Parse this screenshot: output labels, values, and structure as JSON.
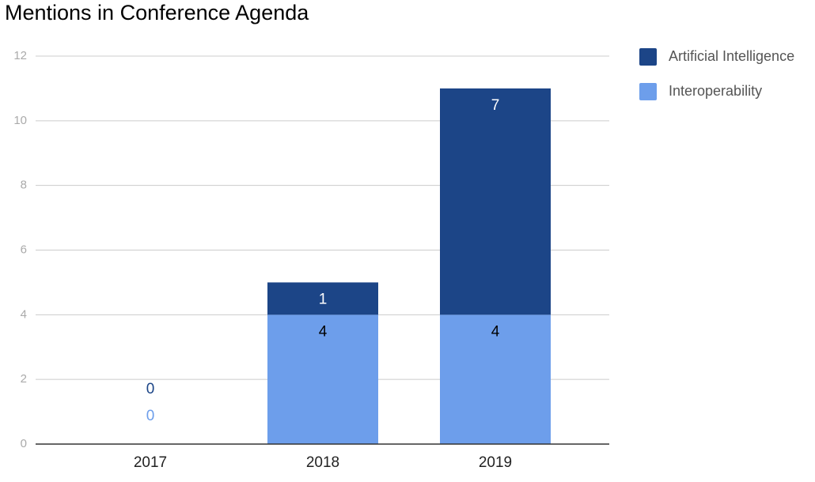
{
  "chart_data": {
    "type": "stacked-bar",
    "title": "Mentions in Conference Agenda",
    "categories": [
      "2017",
      "2018",
      "2019"
    ],
    "series": [
      {
        "name": "Artificial Intelligence",
        "color": "#1c4587",
        "values": [
          0,
          1,
          7
        ]
      },
      {
        "name": "Interoperability",
        "color": "#6d9eeb",
        "values": [
          0,
          4,
          4
        ]
      }
    ],
    "ylim": [
      0,
      12
    ],
    "yticks": [
      0,
      2,
      4,
      6,
      8,
      10,
      12
    ],
    "grid": true,
    "legend": "right"
  }
}
